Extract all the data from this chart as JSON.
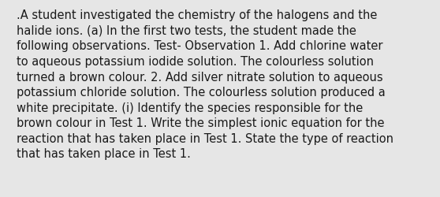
{
  "lines": [
    ".A student investigated the chemistry of the halogens and the",
    "halide ions. (a) In the first two tests, the student made the",
    "following observations. Test- Observation 1. Add chlorine water",
    "to aqueous potassium iodide solution. The colourless solution",
    "turned a brown colour. 2. Add silver nitrate solution to aqueous",
    "potassium chloride solution. The colourless solution produced a",
    "white precipitate. (i) Identify the species responsible for the",
    "brown colour in Test 1. Write the simplest ionic equation for the",
    "reaction that has taken place in Test 1. State the type of reaction",
    "that has taken place in Test 1."
  ],
  "background_color": "#e6e6e6",
  "text_color": "#1a1a1a",
  "font_size": 10.5,
  "font_family": "DejaVu Sans",
  "fig_width": 5.58,
  "fig_height": 2.51,
  "dpi": 100
}
